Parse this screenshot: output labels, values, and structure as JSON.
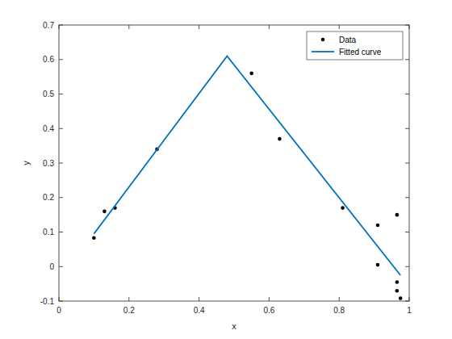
{
  "chart_data": {
    "type": "scatter",
    "x_label": "x",
    "y_label": "y",
    "xlim": [
      0,
      1
    ],
    "ylim": [
      -0.1,
      0.7
    ],
    "xticks": [
      0,
      0.2,
      0.4,
      0.6,
      0.8,
      1
    ],
    "yticks": [
      -0.1,
      0,
      0.1,
      0.2,
      0.3,
      0.4,
      0.5,
      0.6,
      0.7
    ],
    "grid": false,
    "legend": "upper right",
    "series": [
      {
        "name": "Data",
        "type": "scatter",
        "color": "#000000",
        "marker": "dot",
        "x": [
          0.1,
          0.13,
          0.16,
          0.28,
          0.55,
          0.63,
          0.81,
          0.91,
          0.91,
          0.965,
          0.965,
          0.965,
          0.975
        ],
        "values": [
          0.083,
          0.16,
          0.17,
          0.34,
          0.56,
          0.37,
          0.17,
          0.12,
          0.005,
          0.15,
          -0.045,
          -0.07,
          -0.092
        ]
      },
      {
        "name": "Fitted curve",
        "type": "line",
        "color": "#0072bd",
        "line_style": "solid",
        "x": [
          0.1,
          0.48,
          0.975
        ],
        "values": [
          0.095,
          0.61,
          -0.025
        ]
      }
    ]
  }
}
